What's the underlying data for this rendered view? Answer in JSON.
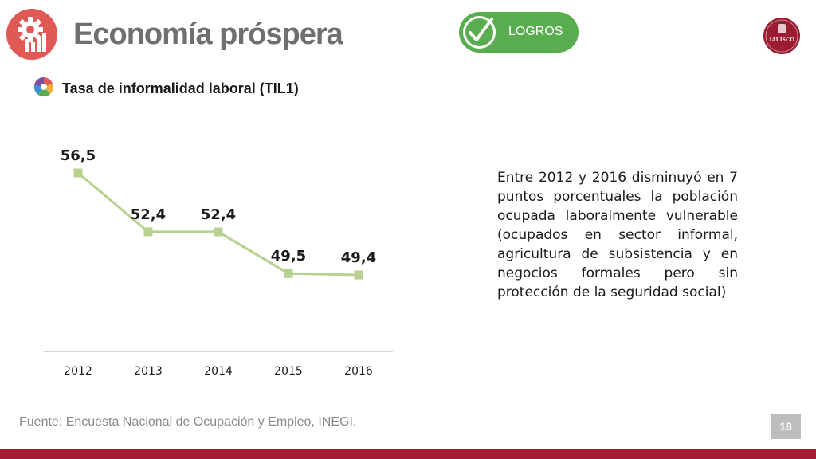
{
  "header": {
    "title": "Economía próspera",
    "icon": "gear-chart-icon",
    "accent_color": "#e05a55"
  },
  "badge": {
    "label": "LOGROS",
    "icon": "check-icon",
    "color": "#5aad4e"
  },
  "logo": {
    "text": "JALISCO",
    "color": "#9b1b30"
  },
  "chart_data": {
    "type": "line",
    "title": "Tasa de informalidad laboral (TIL1)",
    "categories": [
      "2012",
      "2013",
      "2014",
      "2015",
      "2016"
    ],
    "values": [
      56.5,
      52.4,
      52.4,
      49.5,
      49.4
    ],
    "value_labels": [
      "56,5",
      "52,4",
      "52,4",
      "49,5",
      "49,4"
    ],
    "line_color": "#b7d18f",
    "marker": "square",
    "grid": false,
    "legend": "none",
    "xlabel": "",
    "ylabel": ""
  },
  "description": "Entre 2012 y 2016 disminuyó en 7 puntos porcentuales la población ocupada laboralmente vulnerable (ocupados en sector informal, agricultura de subsistencia y en negocios formales pero sin protección de la seguridad social)",
  "footer": {
    "source": "Fuente: Encuesta Nacional de Ocupación y Empleo, INEGI.",
    "page_number": "18",
    "band_color": "#a31c35"
  }
}
